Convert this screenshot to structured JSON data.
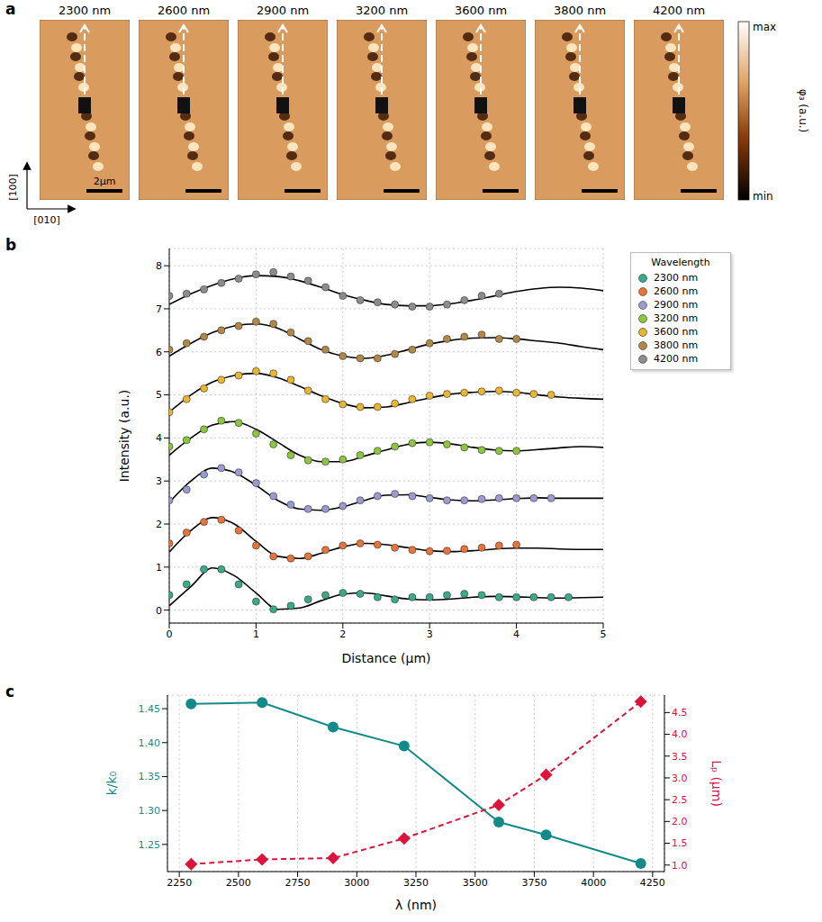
{
  "chart_data": [
    {
      "type": "image_grid",
      "panel_label": "a",
      "titles": [
        "2300 nm",
        "2600 nm",
        "2900 nm",
        "3200 nm",
        "3600 nm",
        "3800 nm",
        "4200 nm"
      ],
      "scale_bar": "2μm",
      "axis_labels": [
        "[100]",
        "[010]"
      ],
      "colorbar": {
        "label": "φ₃ (a.u.)",
        "max": "max",
        "min": "min"
      }
    },
    {
      "type": "scatter",
      "panel_label": "b",
      "x_label": "Distance (μm)",
      "y_label": "Intensity (a.u.)",
      "xlim": [
        0,
        5
      ],
      "xticks": [
        0,
        1,
        2,
        3,
        4,
        5
      ],
      "ylim": [
        -0.3,
        8.4
      ],
      "yticks": [
        0,
        1,
        2,
        3,
        4,
        5,
        6,
        7,
        8
      ],
      "grid": true,
      "legend": "right",
      "legend_title": "Wavelength",
      "marker": "circle",
      "series": [
        {
          "name": "2300 nm",
          "color": "#3aaa8a",
          "x": [
            0,
            0.2,
            0.4,
            0.6,
            0.8,
            1.0,
            1.2,
            1.4,
            1.6,
            1.8,
            2.0,
            2.2,
            2.4,
            2.6,
            2.8,
            3.0,
            3.2,
            3.4,
            3.6,
            3.8,
            4.0,
            4.2,
            4.4,
            4.6
          ],
          "values": [
            0.35,
            0.6,
            0.95,
            0.95,
            0.6,
            0.2,
            0.02,
            0.1,
            0.25,
            0.35,
            0.4,
            0.38,
            0.3,
            0.25,
            0.3,
            0.3,
            0.35,
            0.38,
            0.35,
            0.3,
            0.3,
            0.3,
            0.3,
            0.3
          ]
        },
        {
          "name": "2600 nm",
          "color": "#e8743b",
          "x": [
            0,
            0.2,
            0.4,
            0.6,
            0.8,
            1.0,
            1.2,
            1.4,
            1.6,
            1.8,
            2.0,
            2.2,
            2.4,
            2.6,
            2.8,
            3.0,
            3.2,
            3.4,
            3.6,
            3.8,
            4.0
          ],
          "values": [
            1.55,
            1.8,
            2.05,
            2.1,
            1.85,
            1.5,
            1.25,
            1.2,
            1.25,
            1.4,
            1.5,
            1.55,
            1.52,
            1.45,
            1.4,
            1.37,
            1.38,
            1.42,
            1.45,
            1.5,
            1.52
          ]
        },
        {
          "name": "2900 nm",
          "color": "#9b9bd0",
          "x": [
            0,
            0.2,
            0.4,
            0.6,
            0.8,
            1.0,
            1.2,
            1.4,
            1.6,
            1.8,
            2.0,
            2.2,
            2.4,
            2.6,
            2.8,
            3.0,
            3.2,
            3.4,
            3.6,
            3.8,
            4.0,
            4.2,
            4.4
          ],
          "values": [
            2.55,
            2.8,
            3.15,
            3.3,
            3.2,
            2.95,
            2.65,
            2.45,
            2.35,
            2.35,
            2.42,
            2.55,
            2.65,
            2.7,
            2.65,
            2.6,
            2.55,
            2.55,
            2.58,
            2.6,
            2.6,
            2.6,
            2.6
          ]
        },
        {
          "name": "3200 nm",
          "color": "#8cc63f",
          "x": [
            0,
            0.2,
            0.4,
            0.6,
            0.8,
            1.0,
            1.2,
            1.4,
            1.6,
            1.8,
            2.0,
            2.2,
            2.4,
            2.6,
            2.8,
            3.0,
            3.2,
            3.4,
            3.6,
            3.8,
            4.0
          ],
          "values": [
            3.8,
            3.95,
            4.2,
            4.4,
            4.35,
            4.1,
            3.85,
            3.6,
            3.48,
            3.45,
            3.5,
            3.6,
            3.7,
            3.8,
            3.88,
            3.9,
            3.85,
            3.78,
            3.72,
            3.7,
            3.7
          ]
        },
        {
          "name": "3600 nm",
          "color": "#e8b631",
          "x": [
            0,
            0.2,
            0.4,
            0.6,
            0.8,
            1.0,
            1.2,
            1.4,
            1.6,
            1.8,
            2.0,
            2.2,
            2.4,
            2.6,
            2.8,
            3.0,
            3.2,
            3.4,
            3.6,
            3.8,
            4.0,
            4.2,
            4.4
          ],
          "values": [
            4.6,
            4.9,
            5.15,
            5.35,
            5.45,
            5.55,
            5.5,
            5.35,
            5.1,
            4.9,
            4.78,
            4.72,
            4.72,
            4.8,
            4.9,
            4.98,
            5.02,
            5.05,
            5.08,
            5.1,
            5.05,
            5.02,
            5.0
          ]
        },
        {
          "name": "3800 nm",
          "color": "#b08848",
          "x": [
            0,
            0.2,
            0.4,
            0.6,
            0.8,
            1.0,
            1.2,
            1.4,
            1.6,
            1.8,
            2.0,
            2.2,
            2.4,
            2.6,
            2.8,
            3.0,
            3.2,
            3.4,
            3.6,
            3.8,
            4.0
          ],
          "values": [
            6.05,
            6.2,
            6.35,
            6.5,
            6.6,
            6.7,
            6.65,
            6.45,
            6.25,
            6.05,
            5.9,
            5.85,
            5.85,
            5.95,
            6.05,
            6.2,
            6.3,
            6.35,
            6.4,
            6.3,
            6.3
          ]
        },
        {
          "name": "4200 nm",
          "color": "#8c8c8c",
          "x": [
            0,
            0.2,
            0.4,
            0.6,
            0.8,
            1.0,
            1.2,
            1.4,
            1.6,
            1.8,
            2.0,
            2.2,
            2.4,
            2.6,
            2.8,
            3.0,
            3.2,
            3.4,
            3.6,
            3.8
          ],
          "values": [
            7.3,
            7.35,
            7.45,
            7.6,
            7.7,
            7.8,
            7.85,
            7.75,
            7.65,
            7.5,
            7.3,
            7.2,
            7.15,
            7.1,
            7.05,
            7.05,
            7.1,
            7.2,
            7.3,
            7.35
          ]
        }
      ],
      "fit_x": [
        0,
        0.25,
        0.5,
        0.75,
        1.0,
        1.25,
        1.5,
        1.75,
        2.0,
        2.25,
        2.5,
        2.75,
        3.0,
        3.25,
        3.5,
        3.75,
        4.0,
        4.25,
        4.5,
        4.75,
        5.0
      ],
      "fits": [
        {
          "color": "#000000",
          "values": [
            0.1,
            0.55,
            0.98,
            0.8,
            0.4,
            0.02,
            0.05,
            0.22,
            0.37,
            0.4,
            0.33,
            0.26,
            0.24,
            0.26,
            0.3,
            0.32,
            0.31,
            0.29,
            0.28,
            0.29,
            0.3
          ]
        },
        {
          "color": "#000000",
          "values": [
            1.35,
            1.85,
            2.15,
            2.0,
            1.6,
            1.25,
            1.2,
            1.32,
            1.47,
            1.55,
            1.52,
            1.45,
            1.38,
            1.36,
            1.38,
            1.42,
            1.44,
            1.44,
            1.42,
            1.41,
            1.41
          ]
        },
        {
          "color": "#000000",
          "values": [
            2.5,
            3.0,
            3.3,
            3.2,
            2.9,
            2.55,
            2.35,
            2.32,
            2.4,
            2.55,
            2.67,
            2.68,
            2.62,
            2.56,
            2.54,
            2.56,
            2.59,
            2.61,
            2.6,
            2.6,
            2.6
          ]
        },
        {
          "color": "#000000",
          "values": [
            3.6,
            4.0,
            4.3,
            4.38,
            4.2,
            3.9,
            3.6,
            3.45,
            3.45,
            3.58,
            3.72,
            3.85,
            3.9,
            3.86,
            3.78,
            3.72,
            3.7,
            3.73,
            3.77,
            3.8,
            3.78
          ]
        },
        {
          "color": "#000000",
          "values": [
            4.6,
            5.0,
            5.3,
            5.45,
            5.5,
            5.4,
            5.2,
            4.98,
            4.8,
            4.7,
            4.72,
            4.82,
            4.93,
            5.02,
            5.06,
            5.08,
            5.06,
            5.0,
            4.95,
            4.92,
            4.9
          ]
        },
        {
          "color": "#000000",
          "values": [
            5.9,
            6.2,
            6.45,
            6.6,
            6.65,
            6.55,
            6.3,
            6.05,
            5.9,
            5.85,
            5.92,
            6.05,
            6.18,
            6.27,
            6.32,
            6.33,
            6.3,
            6.25,
            6.2,
            6.12,
            6.05
          ]
        },
        {
          "color": "#000000",
          "values": [
            7.1,
            7.35,
            7.55,
            7.7,
            7.77,
            7.75,
            7.65,
            7.5,
            7.33,
            7.2,
            7.1,
            7.07,
            7.07,
            7.12,
            7.2,
            7.3,
            7.4,
            7.47,
            7.5,
            7.48,
            7.42
          ]
        }
      ]
    },
    {
      "type": "line",
      "panel_label": "c",
      "x_label": "λ (nm)",
      "y_label": "k/k₀",
      "y2_label": "Lₚ (μm)",
      "x": [
        2300,
        2600,
        2900,
        3200,
        3600,
        3800,
        4200
      ],
      "xlim": [
        2200,
        4300
      ],
      "xticks": [
        2250,
        2500,
        2750,
        3000,
        3250,
        3500,
        3750,
        4000,
        4250
      ],
      "ylim": [
        1.21,
        1.47
      ],
      "yticks": [
        {
          "value": 1.25,
          "label": "1.25"
        },
        {
          "value": 1.3,
          "label": "1.30"
        },
        {
          "value": 1.35,
          "label": "1.35"
        },
        {
          "value": 1.4,
          "label": "1.40"
        },
        {
          "value": 1.45,
          "label": "1.45"
        }
      ],
      "y2lim": [
        0.85,
        4.9
      ],
      "y2ticks": [
        {
          "value": 1,
          "label": "1.0"
        },
        {
          "value": 1.5,
          "label": "1.5"
        },
        {
          "value": 2,
          "label": "2.0"
        },
        {
          "value": 2.5,
          "label": "2.5"
        },
        {
          "value": 3,
          "label": "3.0"
        },
        {
          "value": 3.5,
          "label": "3.5"
        },
        {
          "value": 4,
          "label": "4.0"
        },
        {
          "value": 4.5,
          "label": "4.5"
        }
      ],
      "grid": true,
      "series": [
        {
          "name": "k/k₀",
          "color": "#138a8a",
          "marker": "circle",
          "line_style": "solid",
          "values": [
            1.457,
            1.459,
            1.423,
            1.395,
            1.283,
            1.264,
            1.222
          ]
        },
        {
          "name": "Lₚ (μm)",
          "color": "#dc143c",
          "marker": "diamond",
          "line_style": "dashed",
          "axis": "y2",
          "values": [
            1.02,
            1.13,
            1.16,
            1.61,
            2.38,
            3.07,
            4.75
          ]
        }
      ]
    }
  ]
}
